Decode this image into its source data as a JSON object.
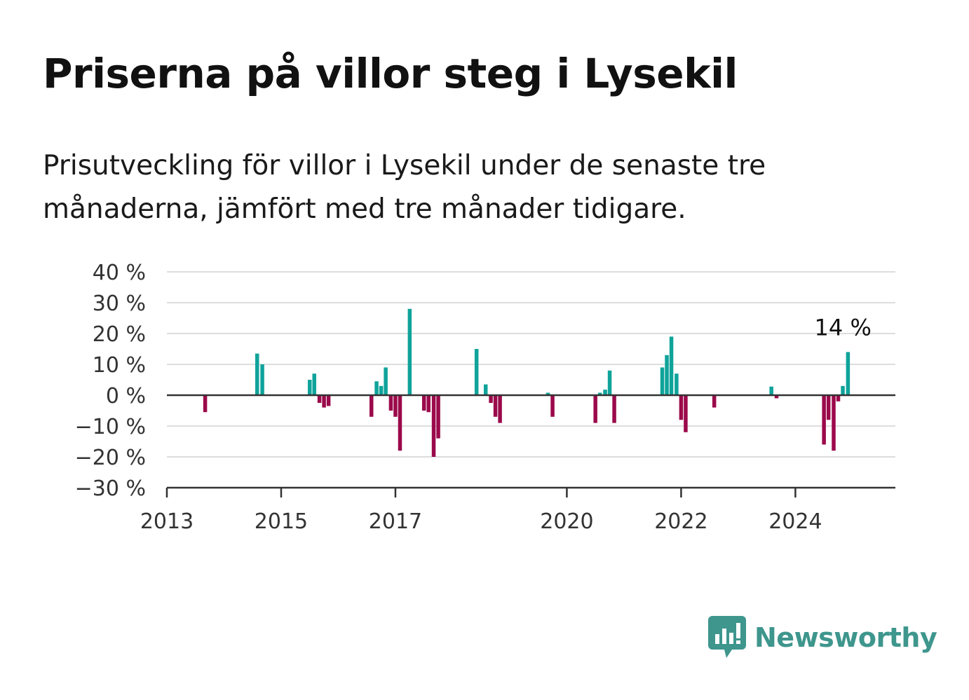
{
  "title": "Priserna på villor steg i Lysekil",
  "subtitle": "Prisutveckling för villor i Lysekil under de senaste tre månaderna, jämfört med tre månader tidigare.",
  "brand": "Newsworthy",
  "colors": {
    "positive": "#0fa39a",
    "negative": "#9b0a4b",
    "grid": "#dddddd",
    "axis": "#333333",
    "brand": "#3e968d"
  },
  "chart_data": {
    "type": "bar",
    "ylim": [
      -30,
      40
    ],
    "yticks": [
      -30,
      -20,
      -10,
      0,
      10,
      20,
      30,
      40
    ],
    "ytick_labels": [
      "−30 %",
      "−20 %",
      "−10 %",
      "0 %",
      "10 %",
      "20 %",
      "30 %",
      "40 %"
    ],
    "xlim": [
      2013.0,
      2025.75
    ],
    "xticks": [
      2013,
      2015,
      2017,
      2020,
      2022,
      2024
    ],
    "xtick_labels": [
      "2013",
      "2015",
      "2017",
      "2020",
      "2022",
      "2024"
    ],
    "grid": true,
    "annotation": {
      "text": "14 %",
      "x": 2024.84,
      "y": 14
    },
    "points": [
      {
        "x": 2013.67,
        "y": -5.5
      },
      {
        "x": 2014.58,
        "y": 13.5
      },
      {
        "x": 2014.67,
        "y": 10
      },
      {
        "x": 2015.5,
        "y": 5
      },
      {
        "x": 2015.58,
        "y": 7
      },
      {
        "x": 2015.67,
        "y": -2.5
      },
      {
        "x": 2015.75,
        "y": -4
      },
      {
        "x": 2015.83,
        "y": -3.5
      },
      {
        "x": 2016.58,
        "y": -7
      },
      {
        "x": 2016.67,
        "y": 4.5
      },
      {
        "x": 2016.75,
        "y": 3
      },
      {
        "x": 2016.83,
        "y": 9
      },
      {
        "x": 2016.92,
        "y": -5
      },
      {
        "x": 2017.0,
        "y": -7
      },
      {
        "x": 2017.08,
        "y": -18
      },
      {
        "x": 2017.25,
        "y": 28
      },
      {
        "x": 2017.5,
        "y": -5
      },
      {
        "x": 2017.58,
        "y": -5.5
      },
      {
        "x": 2017.67,
        "y": -20
      },
      {
        "x": 2017.75,
        "y": -14
      },
      {
        "x": 2018.42,
        "y": 15
      },
      {
        "x": 2018.58,
        "y": 3.5
      },
      {
        "x": 2018.67,
        "y": -2.5
      },
      {
        "x": 2018.75,
        "y": -7
      },
      {
        "x": 2018.83,
        "y": -9
      },
      {
        "x": 2019.67,
        "y": 0.8
      },
      {
        "x": 2019.75,
        "y": -7
      },
      {
        "x": 2020.5,
        "y": -9
      },
      {
        "x": 2020.58,
        "y": 0.8
      },
      {
        "x": 2020.67,
        "y": 1.8
      },
      {
        "x": 2020.75,
        "y": 8
      },
      {
        "x": 2020.83,
        "y": -9
      },
      {
        "x": 2021.67,
        "y": 9
      },
      {
        "x": 2021.75,
        "y": 13
      },
      {
        "x": 2021.83,
        "y": 19
      },
      {
        "x": 2021.92,
        "y": 7
      },
      {
        "x": 2022.0,
        "y": -8
      },
      {
        "x": 2022.08,
        "y": -12
      },
      {
        "x": 2022.58,
        "y": -4
      },
      {
        "x": 2023.58,
        "y": 2.8
      },
      {
        "x": 2023.67,
        "y": -1
      },
      {
        "x": 2024.5,
        "y": -16
      },
      {
        "x": 2024.58,
        "y": -8
      },
      {
        "x": 2024.67,
        "y": -18
      },
      {
        "x": 2024.75,
        "y": -2
      },
      {
        "x": 2024.83,
        "y": 3
      },
      {
        "x": 2024.92,
        "y": 14
      }
    ]
  }
}
